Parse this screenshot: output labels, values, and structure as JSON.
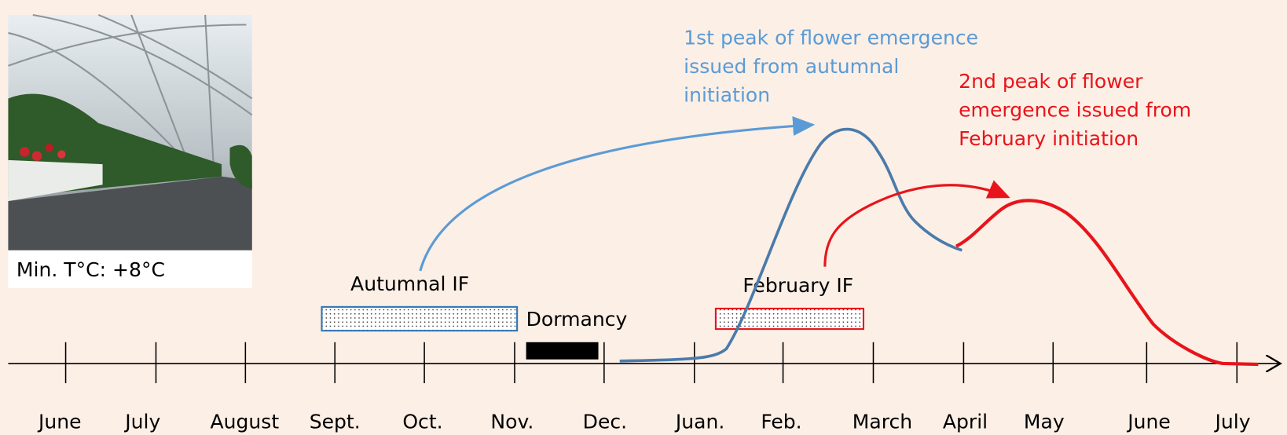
{
  "photo_caption": "Min. T°C:  +8°C",
  "months": [
    "June",
    "July",
    "August",
    "Sept.",
    "Oct.",
    "Nov.",
    "Dec.",
    "Juan.",
    "Feb.",
    "March",
    "April",
    "May",
    "June",
    "July"
  ],
  "periods": {
    "autumnal_if": "Autumnal IF",
    "dormancy": "Dormancy",
    "february_if": "February IF"
  },
  "annotations": {
    "first_peak": [
      "1st peak of flower emergence",
      "issued from autumnal",
      "initiation"
    ],
    "second_peak": [
      "2nd peak of flower",
      "emergence issued from",
      "February initiation"
    ]
  }
}
